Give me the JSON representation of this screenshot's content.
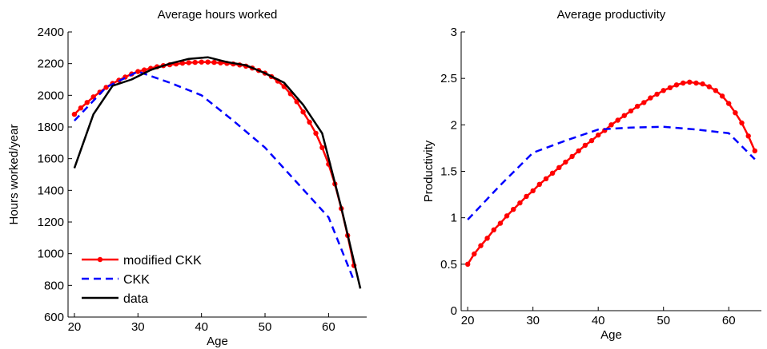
{
  "chart_data": [
    {
      "type": "line",
      "title": "Average hours worked",
      "xlabel": "Age",
      "ylabel": "Hours worked/year",
      "xlim": [
        19,
        66
      ],
      "ylim": [
        600,
        2400
      ],
      "xticks": [
        "20",
        "30",
        "40",
        "50",
        "60"
      ],
      "yticks": [
        "600",
        "800",
        "1000",
        "1200",
        "1400",
        "1600",
        "1800",
        "2000",
        "2200",
        "2400"
      ],
      "legend_position": "bottom-left",
      "series": [
        {
          "name": "modified CKK",
          "color": "#ff0000",
          "style": "solid-with-dots",
          "points": [
            [
              20,
              1880
            ],
            [
              21,
              1920
            ],
            [
              22,
              1955
            ],
            [
              23,
              1990
            ],
            [
              24,
              2020
            ],
            [
              25,
              2050
            ],
            [
              26,
              2075
            ],
            [
              27,
              2095
            ],
            [
              28,
              2115
            ],
            [
              29,
              2135
            ],
            [
              30,
              2150
            ],
            [
              31,
              2160
            ],
            [
              32,
              2170
            ],
            [
              33,
              2180
            ],
            [
              34,
              2187
            ],
            [
              35,
              2193
            ],
            [
              36,
              2198
            ],
            [
              37,
              2203
            ],
            [
              38,
              2206
            ],
            [
              39,
              2208
            ],
            [
              40,
              2210
            ],
            [
              41,
              2210
            ],
            [
              42,
              2208
            ],
            [
              43,
              2205
            ],
            [
              44,
              2202
            ],
            [
              45,
              2198
            ],
            [
              46,
              2192
            ],
            [
              47,
              2184
            ],
            [
              48,
              2172
            ],
            [
              49,
              2157
            ],
            [
              50,
              2140
            ],
            [
              51,
              2118
            ],
            [
              52,
              2090
            ],
            [
              53,
              2055
            ],
            [
              54,
              2010
            ],
            [
              55,
              1960
            ],
            [
              56,
              1895
            ],
            [
              57,
              1830
            ],
            [
              58,
              1760
            ],
            [
              59,
              1670
            ],
            [
              60,
              1565
            ],
            [
              61,
              1440
            ],
            [
              62,
              1285
            ],
            [
              63,
              1115
            ],
            [
              64,
              925
            ]
          ]
        },
        {
          "name": "CKK",
          "color": "#0000ff",
          "style": "dashed",
          "points": [
            [
              20,
              1840
            ],
            [
              25,
              2050
            ],
            [
              30,
              2150
            ],
            [
              35,
              2080
            ],
            [
              40,
              2000
            ],
            [
              45,
              1840
            ],
            [
              50,
              1670
            ],
            [
              55,
              1450
            ],
            [
              60,
              1230
            ],
            [
              64,
              830
            ]
          ]
        },
        {
          "name": "data",
          "color": "#000000",
          "style": "solid",
          "points": [
            [
              20,
              1540
            ],
            [
              23,
              1880
            ],
            [
              26,
              2060
            ],
            [
              29,
              2100
            ],
            [
              32,
              2160
            ],
            [
              35,
              2200
            ],
            [
              38,
              2230
            ],
            [
              41,
              2240
            ],
            [
              44,
              2210
            ],
            [
              47,
              2190
            ],
            [
              50,
              2140
            ],
            [
              53,
              2080
            ],
            [
              56,
              1940
            ],
            [
              59,
              1760
            ],
            [
              62,
              1290
            ],
            [
              65,
              780
            ]
          ]
        }
      ]
    },
    {
      "type": "line",
      "title": "Average productivity",
      "xlabel": "Age",
      "ylabel": "Productivity",
      "xlim": [
        19,
        65
      ],
      "ylim": [
        0,
        3
      ],
      "xticks": [
        "20",
        "30",
        "40",
        "50",
        "60"
      ],
      "yticks": [
        "0",
        "0.5",
        "1",
        "1.5",
        "2",
        "2.5",
        "3"
      ],
      "series": [
        {
          "name": "modified CKK",
          "color": "#ff0000",
          "style": "solid-with-dots",
          "points": [
            [
              20,
              0.5
            ],
            [
              21,
              0.61
            ],
            [
              22,
              0.7
            ],
            [
              23,
              0.78
            ],
            [
              24,
              0.87
            ],
            [
              25,
              0.94
            ],
            [
              26,
              1.02
            ],
            [
              27,
              1.09
            ],
            [
              28,
              1.16
            ],
            [
              29,
              1.23
            ],
            [
              30,
              1.29
            ],
            [
              31,
              1.36
            ],
            [
              32,
              1.42
            ],
            [
              33,
              1.48
            ],
            [
              34,
              1.54
            ],
            [
              35,
              1.6
            ],
            [
              36,
              1.66
            ],
            [
              37,
              1.72
            ],
            [
              38,
              1.78
            ],
            [
              39,
              1.83
            ],
            [
              40,
              1.89
            ],
            [
              41,
              1.94
            ],
            [
              42,
              2.0
            ],
            [
              43,
              2.05
            ],
            [
              44,
              2.1
            ],
            [
              45,
              2.15
            ],
            [
              46,
              2.2
            ],
            [
              47,
              2.24
            ],
            [
              48,
              2.29
            ],
            [
              49,
              2.33
            ],
            [
              50,
              2.37
            ],
            [
              51,
              2.4
            ],
            [
              52,
              2.43
            ],
            [
              53,
              2.45
            ],
            [
              54,
              2.46
            ],
            [
              55,
              2.45
            ],
            [
              56,
              2.44
            ],
            [
              57,
              2.41
            ],
            [
              58,
              2.37
            ],
            [
              59,
              2.31
            ],
            [
              60,
              2.23
            ],
            [
              61,
              2.13
            ],
            [
              62,
              2.02
            ],
            [
              63,
              1.88
            ],
            [
              64,
              1.72
            ]
          ]
        },
        {
          "name": "CKK",
          "color": "#0000ff",
          "style": "dashed",
          "points": [
            [
              20,
              0.98
            ],
            [
              25,
              1.35
            ],
            [
              30,
              1.7
            ],
            [
              35,
              1.83
            ],
            [
              40,
              1.95
            ],
            [
              45,
              1.97
            ],
            [
              50,
              1.98
            ],
            [
              55,
              1.95
            ],
            [
              60,
              1.91
            ],
            [
              64,
              1.63
            ]
          ]
        }
      ]
    }
  ]
}
